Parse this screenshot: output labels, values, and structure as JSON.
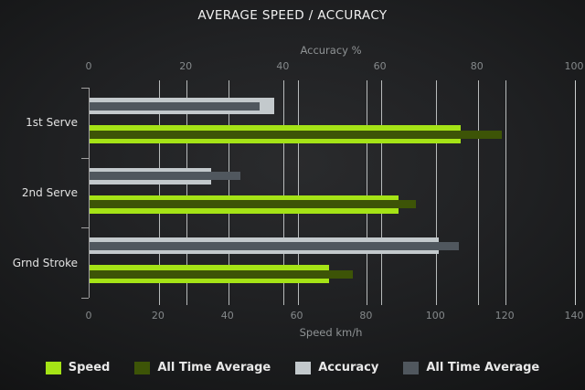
{
  "title": "AVERAGE SPEED / ACCURACY",
  "chart_data": {
    "type": "bar",
    "orientation": "horizontal",
    "title": "AVERAGE SPEED / ACCURACY",
    "categories": [
      "1st Serve",
      "2nd Serve",
      "Grnd Stroke"
    ],
    "axes": {
      "top": {
        "label": "Accuracy %",
        "range": [
          0,
          100
        ],
        "ticks": [
          0,
          20,
          40,
          60,
          80,
          100
        ]
      },
      "bottom": {
        "label": "Speed km/h",
        "range": [
          0,
          140
        ],
        "ticks": [
          0,
          20,
          40,
          60,
          80,
          100,
          120,
          140
        ]
      }
    },
    "grid": "on",
    "legend_position": "bottom",
    "series": [
      {
        "name": "Speed",
        "axis": "bottom",
        "role": "outer",
        "group": "speed",
        "color": "#a5e316",
        "values": [
          107,
          89,
          69
        ]
      },
      {
        "name": "All Time Average",
        "axis": "bottom",
        "role": "inner",
        "group": "speed",
        "color": "#3d5407",
        "values": [
          119,
          94,
          76
        ]
      },
      {
        "name": "Accuracy",
        "axis": "top",
        "role": "outer",
        "group": "accuracy",
        "color": "#c3c9cc",
        "values": [
          38,
          25,
          72
        ]
      },
      {
        "name": "All Time Average",
        "axis": "top",
        "role": "inner",
        "group": "accuracy",
        "color": "#50575e",
        "values": [
          35,
          31,
          76
        ]
      }
    ]
  }
}
